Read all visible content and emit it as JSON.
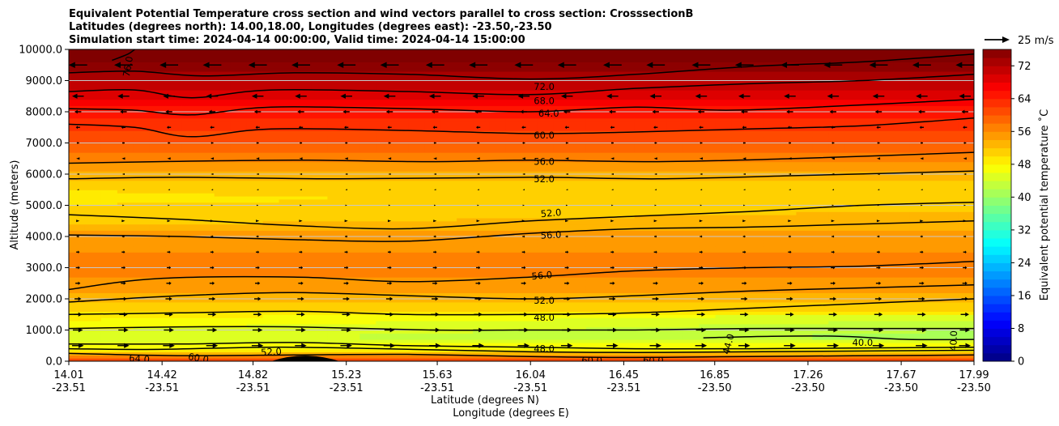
{
  "chart_data": {
    "type": "heatmap",
    "title_lines": [
      "Equivalent Potential Temperature cross section and wind vectors parallel to cross section: CrosssectionB",
      "Latitudes (degrees north): 14.00,18.00, Longitudes (degrees east): -23.50,-23.50",
      "Simulation start time: 2024-04-14 00:00:00, Valid time: 2024-04-14 15:00:00"
    ],
    "xlabel_lat": "Latitude (degrees N)",
    "xlabel_lon": "Longitude (degrees E)",
    "ylabel": "Altitude (meters)",
    "colorbar_label": "Equivalent potential temperature ˚C",
    "quiver_key_label": "25 m/s",
    "xlim": [
      14.01,
      17.99
    ],
    "ylim": [
      0,
      10000
    ],
    "x_ticks": [
      {
        "lat": "14.01",
        "lon": "-23.51",
        "value": 14.01
      },
      {
        "lat": "14.42",
        "lon": "-23.51",
        "value": 14.42
      },
      {
        "lat": "14.82",
        "lon": "-23.51",
        "value": 14.82
      },
      {
        "lat": "15.23",
        "lon": "-23.51",
        "value": 15.23
      },
      {
        "lat": "15.63",
        "lon": "-23.51",
        "value": 15.63
      },
      {
        "lat": "16.04",
        "lon": "-23.51",
        "value": 16.04
      },
      {
        "lat": "16.45",
        "lon": "-23.51",
        "value": 16.45
      },
      {
        "lat": "16.85",
        "lon": "-23.50",
        "value": 16.85
      },
      {
        "lat": "17.26",
        "lon": "-23.50",
        "value": 17.26
      },
      {
        "lat": "17.67",
        "lon": "-23.50",
        "value": 17.67
      },
      {
        "lat": "17.99",
        "lon": "-23.50",
        "value": 17.99
      }
    ],
    "y_ticks": [
      {
        "label": "0.0",
        "value": 0
      },
      {
        "label": "1000.0",
        "value": 1000
      },
      {
        "label": "2000.0",
        "value": 2000
      },
      {
        "label": "3000.0",
        "value": 3000
      },
      {
        "label": "4000.0",
        "value": 4000
      },
      {
        "label": "5000.0",
        "value": 5000
      },
      {
        "label": "6000.0",
        "value": 6000
      },
      {
        "label": "7000.0",
        "value": 7000
      },
      {
        "label": "8000.0",
        "value": 8000
      },
      {
        "label": "9000.0",
        "value": 9000
      },
      {
        "label": "10000.0",
        "value": 10000
      }
    ],
    "grid": "horizontal",
    "colorbar": {
      "min": 0,
      "max": 76,
      "ticks": [
        {
          "label": "0",
          "value": 0
        },
        {
          "label": "8",
          "value": 8
        },
        {
          "label": "16",
          "value": 16
        },
        {
          "label": "24",
          "value": 24
        },
        {
          "label": "32",
          "value": 32
        },
        {
          "label": "40",
          "value": 40
        },
        {
          "label": "48",
          "value": 48
        },
        {
          "label": "56",
          "value": 56
        },
        {
          "label": "64",
          "value": 64
        },
        {
          "label": "72",
          "value": 72
        }
      ]
    },
    "profile_levels": [
      {
        "z": 0,
        "theta": 60
      },
      {
        "z": 100,
        "theta": 60
      },
      {
        "z": 250,
        "theta": 52
      },
      {
        "z": 450,
        "theta": 47
      },
      {
        "z": 800,
        "theta": 45
      },
      {
        "z": 1200,
        "theta": 47
      },
      {
        "z": 1600,
        "theta": 50
      },
      {
        "z": 2200,
        "theta": 54
      },
      {
        "z": 3000,
        "theta": 57
      },
      {
        "z": 3800,
        "theta": 55.5
      },
      {
        "z": 4500,
        "theta": 53
      },
      {
        "z": 5200,
        "theta": 51
      },
      {
        "z": 5800,
        "theta": 52
      },
      {
        "z": 6400,
        "theta": 56
      },
      {
        "z": 7000,
        "theta": 60
      },
      {
        "z": 7600,
        "theta": 63
      },
      {
        "z": 8200,
        "theta": 66
      },
      {
        "z": 8700,
        "theta": 70
      },
      {
        "z": 9300,
        "theta": 74
      },
      {
        "z": 10000,
        "theta": 78
      }
    ],
    "contours": [
      {
        "level": "76.0",
        "points": [
          [
            14.2,
            9650
          ],
          [
            14.27,
            9850
          ],
          [
            14.3,
            10000
          ]
        ]
      },
      {
        "level": "72.0",
        "points": [
          [
            14.01,
            9250
          ],
          [
            14.3,
            9300
          ],
          [
            14.6,
            9150
          ],
          [
            15.0,
            9250
          ],
          [
            15.5,
            9200
          ],
          [
            16.04,
            9050
          ],
          [
            16.5,
            9200
          ],
          [
            17.0,
            9450
          ],
          [
            17.5,
            9600
          ],
          [
            17.99,
            9850
          ]
        ]
      },
      {
        "level": "68.0",
        "points": [
          [
            14.01,
            8650
          ],
          [
            14.3,
            8700
          ],
          [
            14.55,
            8450
          ],
          [
            14.9,
            8700
          ],
          [
            15.5,
            8650
          ],
          [
            16.04,
            8550
          ],
          [
            16.5,
            8750
          ],
          [
            17.0,
            8900
          ],
          [
            17.5,
            9000
          ],
          [
            17.99,
            9200
          ]
        ]
      },
      {
        "level": "64.0",
        "points": [
          [
            14.01,
            8100
          ],
          [
            14.3,
            8050
          ],
          [
            14.55,
            7900
          ],
          [
            14.9,
            8150
          ],
          [
            15.5,
            8100
          ],
          [
            16.04,
            8000
          ],
          [
            16.5,
            8150
          ],
          [
            16.9,
            8050
          ],
          [
            17.3,
            8150
          ],
          [
            17.99,
            8400
          ]
        ]
      },
      {
        "level": "60.0",
        "points": [
          [
            14.01,
            7600
          ],
          [
            14.3,
            7500
          ],
          [
            14.55,
            7200
          ],
          [
            14.9,
            7450
          ],
          [
            15.5,
            7400
          ],
          [
            16.04,
            7300
          ],
          [
            16.5,
            7350
          ],
          [
            17.0,
            7450
          ],
          [
            17.5,
            7550
          ],
          [
            17.99,
            7800
          ]
        ]
      },
      {
        "level": "56.0",
        "points": [
          [
            14.01,
            6350
          ],
          [
            14.4,
            6400
          ],
          [
            15.0,
            6450
          ],
          [
            15.6,
            6400
          ],
          [
            16.04,
            6450
          ],
          [
            16.6,
            6400
          ],
          [
            17.2,
            6500
          ],
          [
            17.99,
            6700
          ]
        ]
      },
      {
        "level": "52.0",
        "points": [
          [
            14.01,
            5850
          ],
          [
            14.5,
            5900
          ],
          [
            15.2,
            5850
          ],
          [
            16.04,
            5900
          ],
          [
            16.6,
            5850
          ],
          [
            17.2,
            5950
          ],
          [
            17.99,
            6100
          ]
        ]
      },
      {
        "level": "52.0",
        "points": [
          [
            14.01,
            4700
          ],
          [
            14.5,
            4550
          ],
          [
            15.0,
            4350
          ],
          [
            15.5,
            4250
          ],
          [
            16.04,
            4500
          ],
          [
            16.5,
            4650
          ],
          [
            17.0,
            4800
          ],
          [
            17.5,
            5000
          ],
          [
            17.99,
            5100
          ]
        ]
      },
      {
        "level": "56.0",
        "points": [
          [
            14.01,
            4050
          ],
          [
            14.5,
            4000
          ],
          [
            15.0,
            3900
          ],
          [
            15.5,
            3850
          ],
          [
            16.04,
            4100
          ],
          [
            16.5,
            4250
          ],
          [
            17.0,
            4300
          ],
          [
            17.5,
            4400
          ],
          [
            17.99,
            4500
          ]
        ]
      },
      {
        "level": "56.0",
        "points": [
          [
            14.01,
            2300
          ],
          [
            14.4,
            2650
          ],
          [
            15.0,
            2700
          ],
          [
            15.5,
            2550
          ],
          [
            16.04,
            2700
          ],
          [
            16.5,
            2900
          ],
          [
            17.0,
            3000
          ],
          [
            17.5,
            3050
          ],
          [
            17.99,
            3200
          ]
        ]
      },
      {
        "level": "52.0",
        "points": [
          [
            14.01,
            1900
          ],
          [
            14.5,
            2100
          ],
          [
            15.0,
            2200
          ],
          [
            15.5,
            2100
          ],
          [
            16.04,
            2000
          ],
          [
            16.5,
            2100
          ],
          [
            17.0,
            2250
          ],
          [
            17.5,
            2350
          ],
          [
            17.99,
            2450
          ]
        ]
      },
      {
        "level": "48.0",
        "points": [
          [
            14.01,
            1500
          ],
          [
            14.5,
            1550
          ],
          [
            15.0,
            1600
          ],
          [
            15.5,
            1500
          ],
          [
            16.04,
            1500
          ],
          [
            16.5,
            1550
          ],
          [
            17.0,
            1700
          ],
          [
            17.5,
            1850
          ],
          [
            17.99,
            2000
          ]
        ]
      },
      {
        "level": "44.0",
        "points": [
          [
            14.01,
            1050
          ],
          [
            14.5,
            1100
          ],
          [
            15.0,
            1100
          ],
          [
            15.6,
            1000
          ],
          [
            16.04,
            1000
          ],
          [
            16.5,
            1000
          ],
          [
            17.0,
            1050
          ],
          [
            17.5,
            1050
          ],
          [
            17.99,
            1050
          ]
        ]
      },
      {
        "level": "40.0",
        "points": [
          [
            16.8,
            750
          ],
          [
            17.1,
            800
          ],
          [
            17.4,
            800
          ],
          [
            17.7,
            700
          ],
          [
            17.99,
            700
          ]
        ]
      },
      {
        "level": "48.0",
        "points": [
          [
            14.01,
            550
          ],
          [
            14.5,
            550
          ],
          [
            15.0,
            600
          ],
          [
            15.5,
            500
          ],
          [
            16.04,
            450
          ],
          [
            16.5,
            400
          ],
          [
            17.0,
            400
          ],
          [
            17.99,
            450
          ]
        ]
      },
      {
        "level": "52.0",
        "points": [
          [
            14.01,
            400
          ],
          [
            14.4,
            380
          ],
          [
            14.9,
            450
          ],
          [
            15.4,
            400
          ],
          [
            16.04,
            300
          ],
          [
            16.5,
            280
          ],
          [
            17.0,
            300
          ],
          [
            17.99,
            350
          ]
        ]
      },
      {
        "level": "60.0",
        "points": [
          [
            14.01,
            250
          ],
          [
            14.5,
            180
          ],
          [
            15.0,
            200
          ],
          [
            15.5,
            220
          ],
          [
            16.04,
            150
          ],
          [
            16.5,
            120
          ],
          [
            17.0,
            150
          ],
          [
            17.99,
            200
          ]
        ]
      }
    ],
    "contour_labels": [
      {
        "text": "76.0",
        "x": 14.27,
        "y": 9450,
        "rotate": -80
      },
      {
        "text": "72.0",
        "x": 16.1,
        "y": 8800,
        "rotate": 0
      },
      {
        "text": "68.0",
        "x": 16.1,
        "y": 8350,
        "rotate": 0
      },
      {
        "text": "64.0",
        "x": 16.12,
        "y": 7950,
        "rotate": 0
      },
      {
        "text": "60.0",
        "x": 16.1,
        "y": 7250,
        "rotate": 0
      },
      {
        "text": "56.0",
        "x": 16.1,
        "y": 6400,
        "rotate": 0
      },
      {
        "text": "52.0",
        "x": 16.1,
        "y": 5850,
        "rotate": 0
      },
      {
        "text": "52.0",
        "x": 16.13,
        "y": 4750,
        "rotate": -5
      },
      {
        "text": "56.0",
        "x": 16.13,
        "y": 4050,
        "rotate": -3
      },
      {
        "text": "56.0",
        "x": 16.09,
        "y": 2750,
        "rotate": -5
      },
      {
        "text": "52.0",
        "x": 16.1,
        "y": 1950,
        "rotate": 0
      },
      {
        "text": "48.0",
        "x": 16.1,
        "y": 1400,
        "rotate": 0
      },
      {
        "text": "48.0",
        "x": 16.1,
        "y": 400,
        "rotate": 0
      },
      {
        "text": "52.0",
        "x": 14.9,
        "y": 300,
        "rotate": -3
      },
      {
        "text": "60.0",
        "x": 14.58,
        "y": 100,
        "rotate": 10
      },
      {
        "text": "64.0",
        "x": 14.32,
        "y": 80,
        "rotate": 5
      },
      {
        "text": "40.0",
        "x": 17.5,
        "y": 600,
        "rotate": 0
      },
      {
        "text": "40.0",
        "x": 17.9,
        "y": 650,
        "rotate": -88
      },
      {
        "text": "44.0",
        "x": 16.91,
        "y": 550,
        "rotate": -75
      },
      {
        "text": "60.0",
        "x": 16.58,
        "y": 20,
        "rotate": 0
      },
      {
        "text": "60.0",
        "x": 16.31,
        "y": 20,
        "rotate": 0
      }
    ],
    "terrain": {
      "x_start": 14.9,
      "x_peak": 15.05,
      "x_end": 15.2,
      "peak_altitude": 200
    },
    "wind": {
      "rows": [
        {
          "z": 9500,
          "u": -22
        },
        {
          "z": 8500,
          "u": -14
        },
        {
          "z": 8000,
          "u": -8
        },
        {
          "z": 7500,
          "u": -5
        },
        {
          "z": 7000,
          "u": -3
        },
        {
          "z": 6500,
          "u": -2
        },
        {
          "z": 6000,
          "u": -1.5
        },
        {
          "z": 5500,
          "u": -1
        },
        {
          "z": 5000,
          "u": 1
        },
        {
          "z": 4500,
          "u": 2
        },
        {
          "z": 4000,
          "u": 3
        },
        {
          "z": 3500,
          "u": 4
        },
        {
          "z": 3000,
          "u": 5
        },
        {
          "z": 2500,
          "u": 6
        },
        {
          "z": 2000,
          "u": 8
        },
        {
          "z": 1500,
          "u": 10
        },
        {
          "z": 1000,
          "u": 12
        },
        {
          "z": 500,
          "u": 14
        }
      ],
      "x_positions": [
        14.05,
        14.25,
        14.45,
        14.64,
        14.84,
        15.03,
        15.23,
        15.42,
        15.62,
        15.81,
        16.01,
        16.2,
        16.4,
        16.59,
        16.79,
        16.98,
        17.18,
        17.37,
        17.57,
        17.76,
        17.95
      ]
    }
  }
}
